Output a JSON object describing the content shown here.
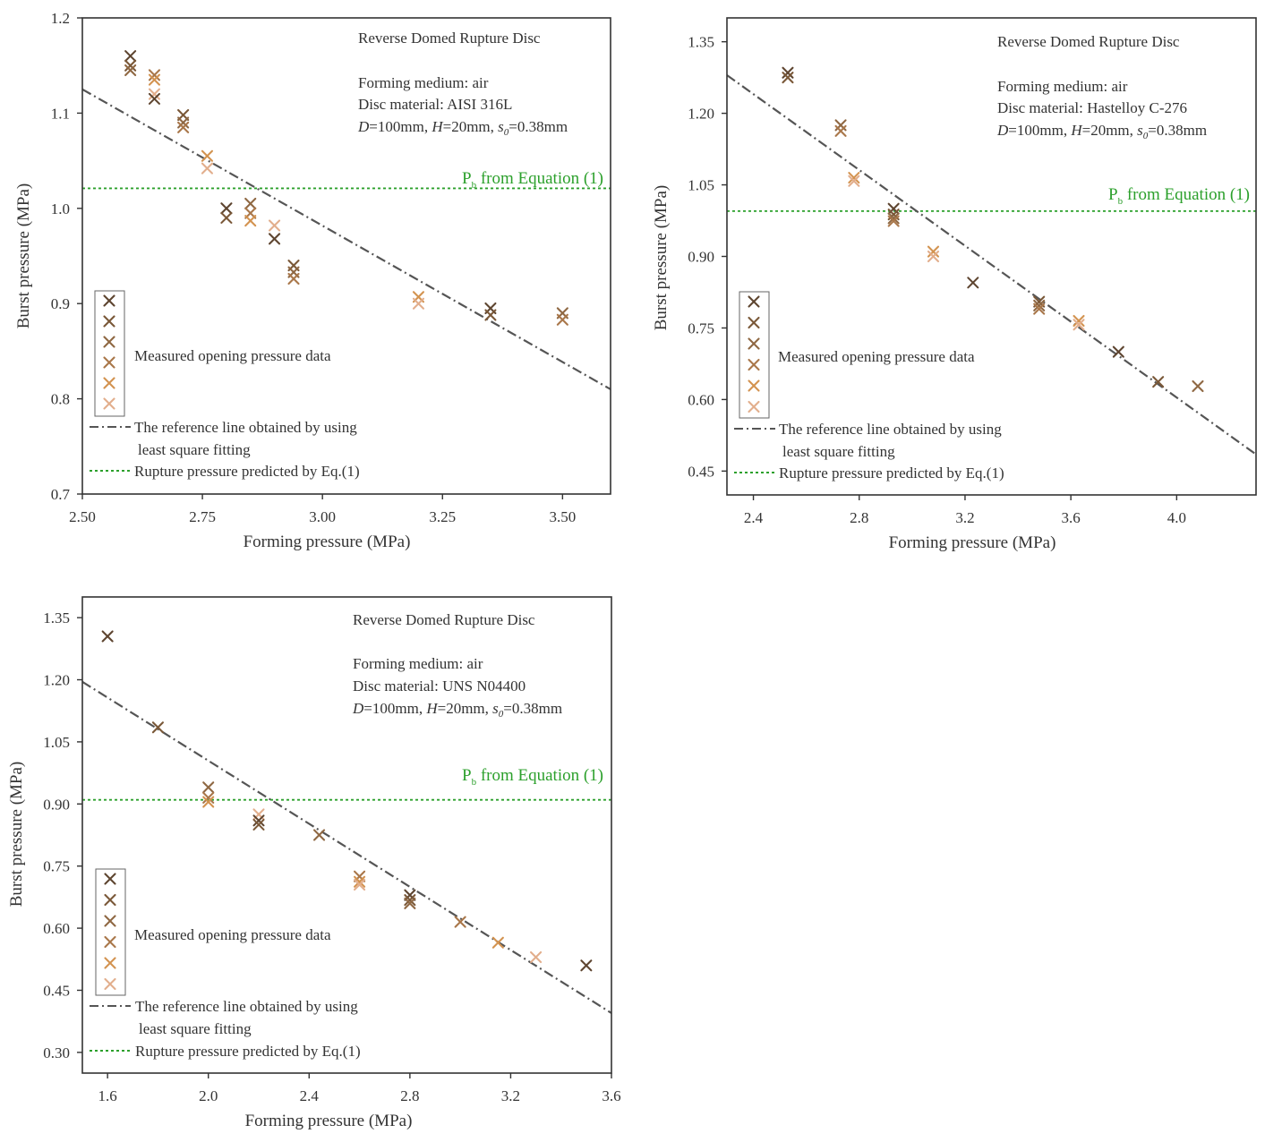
{
  "colors": {
    "marker_shades": [
      "#5e4530",
      "#7a5838",
      "#8f6843",
      "#a9774a",
      "#d39350",
      "#e2ae8c"
    ],
    "fit_line": "#555555",
    "equation_line": "#2ca02c",
    "equation_text": "#2ca02c",
    "axes": "#333333"
  },
  "chart_data": [
    {
      "type": "scatter",
      "xlabel": "Forming pressure (MPa)",
      "ylabel": "Burst pressure (MPa)",
      "xlim": [
        2.5,
        3.6
      ],
      "ylim": [
        0.7,
        1.2
      ],
      "xticks": [
        "2.50",
        "2.75",
        "3.00",
        "3.25",
        "3.50"
      ],
      "yticks": [
        "0.7",
        "0.8",
        "0.9",
        "1.0",
        "1.1",
        "1.2"
      ],
      "xtick_values": [
        2.5,
        2.75,
        3.0,
        3.25,
        3.5
      ],
      "ytick_values": [
        0.7,
        0.8,
        0.9,
        1.0,
        1.1,
        1.2
      ],
      "annotation": {
        "title": "Reverse Domed Rupture Disc",
        "medium": "Forming medium: air",
        "material": "Disc material: AISI 316L",
        "dims": {
          "D": "D",
          "d_val": "=100mm, ",
          "H": "H",
          "h_val": "=20mm, ",
          "s": "s",
          "s_sub": "0",
          "s_val": "=0.38mm"
        }
      },
      "equation_label": {
        "p": "P",
        "sub": "b",
        "rest": " from Equation (1)"
      },
      "equation_value": 1.021,
      "fit_line": [
        [
          2.5,
          1.125
        ],
        [
          3.6,
          0.81
        ]
      ],
      "legend": {
        "measured": "Measured opening pressure data",
        "fit_line1": "The reference line obtained by using",
        "fit_line2": "least square fitting",
        "eq": "Rupture pressure predicted by Eq.(1)"
      },
      "points": [
        [
          2.6,
          1.16
        ],
        [
          2.6,
          1.15
        ],
        [
          2.6,
          1.145
        ],
        [
          2.65,
          1.14
        ],
        [
          2.65,
          1.135
        ],
        [
          2.65,
          1.12
        ],
        [
          2.65,
          1.115
        ],
        [
          2.71,
          1.098
        ],
        [
          2.71,
          1.09
        ],
        [
          2.71,
          1.085
        ],
        [
          2.76,
          1.055
        ],
        [
          2.76,
          1.042
        ],
        [
          2.8,
          1.0
        ],
        [
          2.8,
          0.99
        ],
        [
          2.85,
          1.005
        ],
        [
          2.85,
          0.995
        ],
        [
          2.85,
          0.987
        ],
        [
          2.9,
          0.982
        ],
        [
          2.9,
          0.968
        ],
        [
          2.94,
          0.94
        ],
        [
          2.94,
          0.933
        ],
        [
          2.94,
          0.926
        ],
        [
          3.2,
          0.907
        ],
        [
          3.2,
          0.9
        ],
        [
          3.35,
          0.895
        ],
        [
          3.35,
          0.888
        ],
        [
          3.5,
          0.89
        ],
        [
          3.5,
          0.883
        ]
      ]
    },
    {
      "type": "scatter",
      "xlabel": "Forming pressure (MPa)",
      "ylabel": "Burst pressure (MPa)",
      "xlim": [
        2.3,
        4.3
      ],
      "ylim": [
        0.4,
        1.4
      ],
      "xticks": [
        "2.4",
        "2.8",
        "3.2",
        "3.6",
        "4.0"
      ],
      "yticks": [
        "0.45",
        "0.60",
        "0.75",
        "0.90",
        "1.05",
        "1.20",
        "1.35"
      ],
      "xtick_values": [
        2.4,
        2.8,
        3.2,
        3.6,
        4.0
      ],
      "ytick_values": [
        0.45,
        0.6,
        0.75,
        0.9,
        1.05,
        1.2,
        1.35
      ],
      "annotation": {
        "title": "Reverse Domed Rupture Disc",
        "medium": "Forming medium: air",
        "material": "Disc material: Hastelloy C-276",
        "dims": {
          "D": "D",
          "d_val": "=100mm, ",
          "H": "H",
          "h_val": "=20mm, ",
          "s": "s",
          "s_sub": "0",
          "s_val": "=0.38mm"
        }
      },
      "equation_label": {
        "p": "P",
        "sub": "b",
        "rest": " from Equation (1)"
      },
      "equation_value": 0.995,
      "fit_line": [
        [
          2.3,
          1.28
        ],
        [
          4.3,
          0.485
        ]
      ],
      "legend": {
        "measured": "Measured opening pressure data",
        "fit_line1": "The reference line obtained by using",
        "fit_line2": "least square fitting",
        "eq": "Rupture pressure predicted by Eq.(1)"
      },
      "points": [
        [
          2.53,
          1.285
        ],
        [
          2.53,
          1.275
        ],
        [
          2.73,
          1.175
        ],
        [
          2.73,
          1.163
        ],
        [
          2.78,
          1.065
        ],
        [
          2.78,
          1.058
        ],
        [
          2.93,
          1.0
        ],
        [
          2.93,
          0.988
        ],
        [
          2.93,
          0.98
        ],
        [
          2.93,
          0.974
        ],
        [
          3.08,
          0.91
        ],
        [
          3.08,
          0.9
        ],
        [
          3.23,
          0.845
        ],
        [
          3.48,
          0.805
        ],
        [
          3.48,
          0.797
        ],
        [
          3.48,
          0.79
        ],
        [
          3.63,
          0.765
        ],
        [
          3.63,
          0.757
        ],
        [
          3.78,
          0.7
        ],
        [
          3.93,
          0.637
        ],
        [
          4.08,
          0.628
        ]
      ]
    },
    {
      "type": "scatter",
      "xlabel": "Forming pressure (MPa)",
      "ylabel": "Burst pressure (MPa)",
      "xlim": [
        1.5,
        3.6
      ],
      "ylim": [
        0.25,
        1.4
      ],
      "xticks": [
        "1.6",
        "2.0",
        "2.4",
        "2.8",
        "3.2",
        "3.6"
      ],
      "yticks": [
        "0.30",
        "0.45",
        "0.60",
        "0.75",
        "0.90",
        "1.05",
        "1.20",
        "1.35"
      ],
      "xtick_values": [
        1.6,
        2.0,
        2.4,
        2.8,
        3.2,
        3.6
      ],
      "ytick_values": [
        0.3,
        0.45,
        0.6,
        0.75,
        0.9,
        1.05,
        1.2,
        1.35
      ],
      "annotation": {
        "title": "Reverse Domed Rupture Disc",
        "medium": "Forming medium: air",
        "material": "Disc material: UNS N04400",
        "dims": {
          "D": "D",
          "d_val": "=100mm, ",
          "H": "H",
          "h_val": "=20mm, ",
          "s": "s",
          "s_sub": "0",
          "s_val": "=0.38mm"
        }
      },
      "equation_label": {
        "p": "P",
        "sub": "b",
        "rest": " from Equation (1)"
      },
      "equation_value": 0.91,
      "fit_line": [
        [
          1.5,
          1.195
        ],
        [
          3.6,
          0.395
        ]
      ],
      "legend": {
        "measured": "Measured opening pressure data",
        "fit_line1": "The reference line obtained by using",
        "fit_line2": "least square fitting",
        "eq": "Rupture pressure predicted by Eq.(1)"
      },
      "points": [
        [
          1.6,
          1.305
        ],
        [
          1.8,
          1.085
        ],
        [
          2.0,
          0.94
        ],
        [
          2.0,
          0.915
        ],
        [
          2.0,
          0.905
        ],
        [
          2.2,
          0.875
        ],
        [
          2.2,
          0.86
        ],
        [
          2.2,
          0.85
        ],
        [
          2.44,
          0.825
        ],
        [
          2.6,
          0.725
        ],
        [
          2.6,
          0.712
        ],
        [
          2.6,
          0.705
        ],
        [
          2.8,
          0.68
        ],
        [
          2.8,
          0.668
        ],
        [
          2.8,
          0.66
        ],
        [
          3.0,
          0.615
        ],
        [
          3.15,
          0.565
        ],
        [
          3.3,
          0.53
        ],
        [
          3.5,
          0.51
        ]
      ]
    }
  ]
}
